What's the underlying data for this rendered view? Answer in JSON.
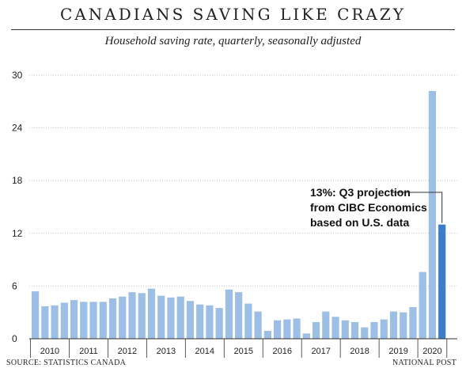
{
  "header": {
    "title": "CANADIANS SAVING LIKE CRAZY",
    "subtitle": "Household saving rate, quarterly, seasonally adjusted"
  },
  "footer": {
    "source": "SOURCE: STATISTICS CANADA",
    "credit": "NATIONAL POST"
  },
  "chart_data": {
    "type": "bar",
    "title": "CANADIANS SAVING LIKE CRAZY",
    "subtitle": "Household saving rate, quarterly, seasonally adjusted",
    "xlabel": "",
    "ylabel": "",
    "ylim": [
      0,
      30
    ],
    "yticks": [
      0,
      6,
      12,
      18,
      24,
      30
    ],
    "grid": true,
    "year_labels": [
      "2010",
      "2011",
      "2012",
      "2013",
      "2014",
      "2015",
      "2016",
      "2017",
      "2018",
      "2019",
      "2020"
    ],
    "year_start_index": [
      0,
      4,
      8,
      12,
      16,
      20,
      24,
      28,
      32,
      36,
      40
    ],
    "colors": {
      "bar": "#9dbfe6",
      "highlight": "#3d7cc9",
      "grid": "#c8c8c8",
      "axis": "#333333"
    },
    "values": [
      5.4,
      3.7,
      3.8,
      4.1,
      4.4,
      4.2,
      4.2,
      4.2,
      4.6,
      4.8,
      5.3,
      5.2,
      5.7,
      4.9,
      4.7,
      4.8,
      4.3,
      3.9,
      3.8,
      3.5,
      5.6,
      5.3,
      4.0,
      3.1,
      0.9,
      2.1,
      2.2,
      2.3,
      0.6,
      1.9,
      3.1,
      2.5,
      2.1,
      1.9,
      1.3,
      1.9,
      2.2,
      3.1,
      3.0,
      3.6,
      7.6,
      28.2,
      13.0
    ],
    "highlight_index": 42,
    "annotation": {
      "lines": [
        "13%: Q3 projection",
        "from CIBC Economics",
        "based on U.S. data"
      ]
    }
  }
}
